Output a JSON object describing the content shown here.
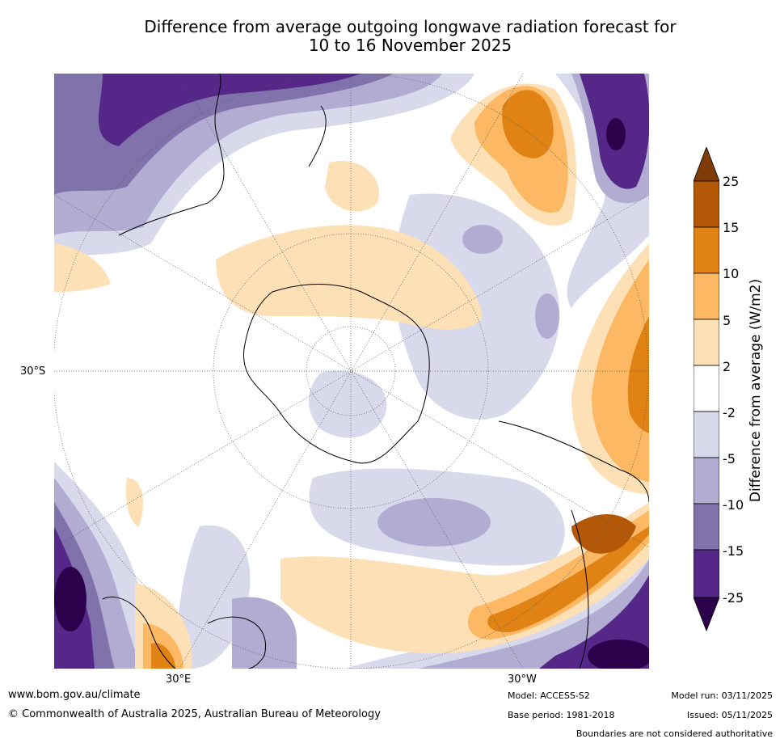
{
  "header": {
    "title_line1": "Difference from average outgoing longwave radiation forecast for",
    "title_line2": "10 to 16 November 2025"
  },
  "map": {
    "projection": "south polar stereographic",
    "lat_label": "30°S",
    "lon_labels": [
      "30°E",
      "30°W"
    ]
  },
  "colorbar": {
    "label": "Difference from average (W/m2)",
    "ticks": [
      "25",
      "15",
      "10",
      "5",
      "2",
      "-2",
      "-5",
      "-10",
      "-15",
      "-25"
    ],
    "colors": [
      "#7f3b08",
      "#b35806",
      "#e08214",
      "#fdb863",
      "#fee0b6",
      "#ffffff",
      "#d8daeb",
      "#b2abd2",
      "#8073ac",
      "#542788",
      "#2d004b"
    ]
  },
  "footer": {
    "website": "www.bom.gov.au/climate",
    "copyright": "© Commonwealth of Australia 2025, Australian Bureau of Meteorology",
    "model": "Model: ACCESS-S2",
    "base_period": "Base period: 1981-2018",
    "model_run": "Model run: 03/11/2025",
    "issued": "Issued: 05/11/2025",
    "disclaimer": "Boundaries are not considered authoritative"
  }
}
